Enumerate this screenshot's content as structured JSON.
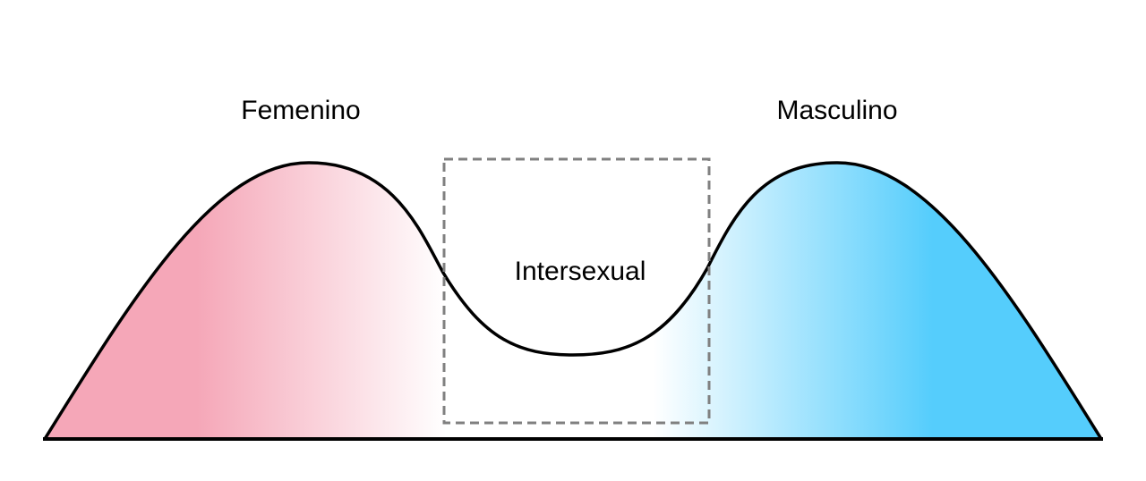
{
  "labels": {
    "female": "Femenino",
    "male": "Masculino",
    "intersex": "Intersexual"
  },
  "colors": {
    "female": "#f5a7b8",
    "male": "#55cdfc",
    "middle": "#ffffff",
    "outline": "#000000",
    "box": "#808080"
  }
}
